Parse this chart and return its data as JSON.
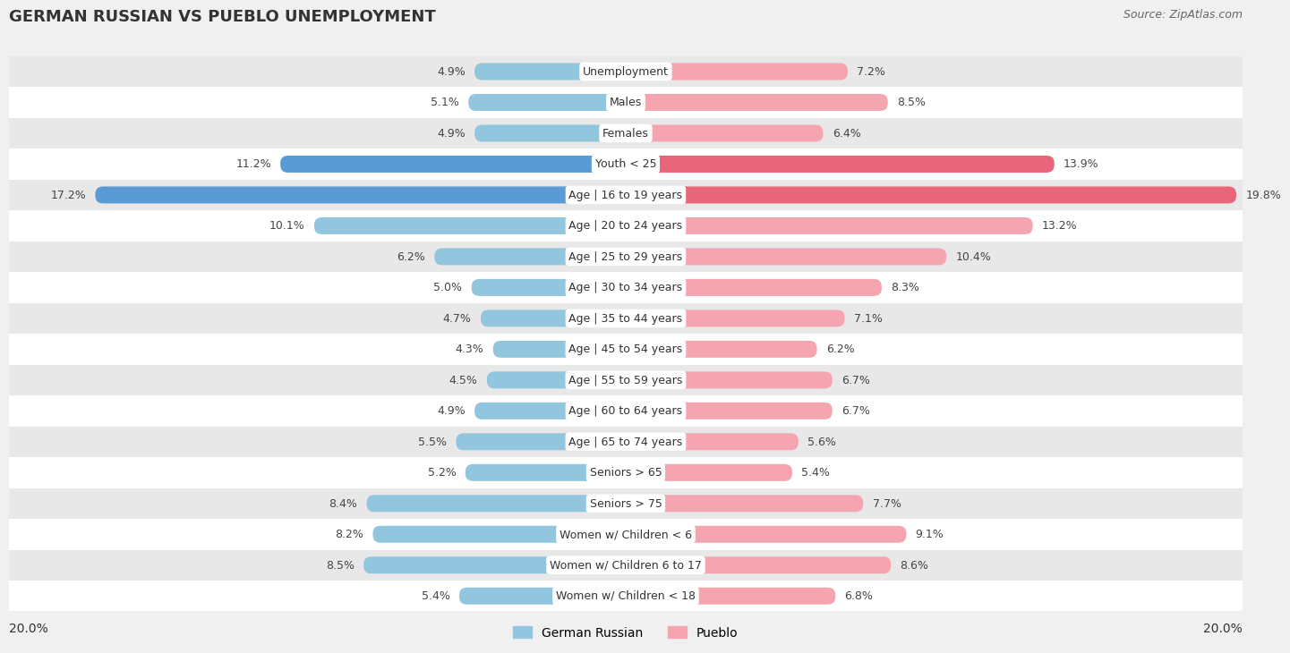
{
  "title": "GERMAN RUSSIAN VS PUEBLO UNEMPLOYMENT",
  "source": "Source: ZipAtlas.com",
  "categories": [
    "Unemployment",
    "Males",
    "Females",
    "Youth < 25",
    "Age | 16 to 19 years",
    "Age | 20 to 24 years",
    "Age | 25 to 29 years",
    "Age | 30 to 34 years",
    "Age | 35 to 44 years",
    "Age | 45 to 54 years",
    "Age | 55 to 59 years",
    "Age | 60 to 64 years",
    "Age | 65 to 74 years",
    "Seniors > 65",
    "Seniors > 75",
    "Women w/ Children < 6",
    "Women w/ Children 6 to 17",
    "Women w/ Children < 18"
  ],
  "german_russian": [
    4.9,
    5.1,
    4.9,
    11.2,
    17.2,
    10.1,
    6.2,
    5.0,
    4.7,
    4.3,
    4.5,
    4.9,
    5.5,
    5.2,
    8.4,
    8.2,
    8.5,
    5.4
  ],
  "pueblo": [
    7.2,
    8.5,
    6.4,
    13.9,
    19.8,
    13.2,
    10.4,
    8.3,
    7.1,
    6.2,
    6.7,
    6.7,
    5.6,
    5.4,
    7.7,
    9.1,
    8.6,
    6.8
  ],
  "german_russian_color": "#92c5de",
  "pueblo_color": "#f4a5b0",
  "german_russian_highlight": "#5b9bd5",
  "pueblo_highlight": "#e8667a",
  "axis_max": 20.0,
  "bar_height": 0.55,
  "bg_color": "#f0f0f0",
  "row_color_light": "#ffffff",
  "row_color_dark": "#e8e8e8",
  "legend_label_left": "German Russian",
  "legend_label_right": "Pueblo",
  "title_fontsize": 13,
  "label_fontsize": 9,
  "value_fontsize": 9
}
